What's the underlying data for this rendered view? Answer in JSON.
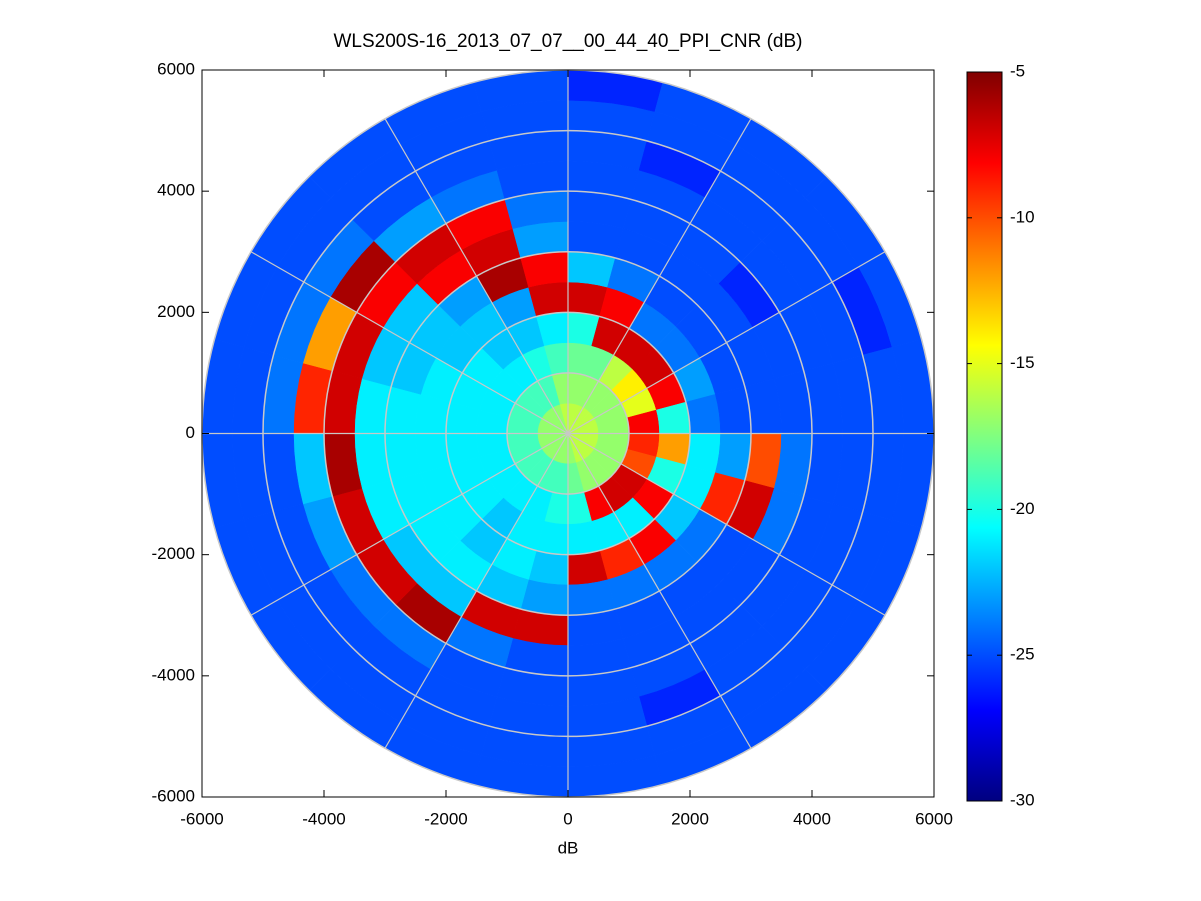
{
  "chart_data": {
    "type": "polar_heatmap",
    "title": "WLS200S-16_2013_07_07__00_44_40_PPI_CNR (dB)",
    "xlabel": "dB",
    "xlim": [
      -6000,
      6000
    ],
    "ylim": [
      -6000,
      6000
    ],
    "xticks": [
      -6000,
      -4000,
      -2000,
      0,
      2000,
      4000,
      6000
    ],
    "yticks": [
      -6000,
      -4000,
      -2000,
      0,
      2000,
      4000,
      6000
    ],
    "colormap": "jet",
    "clim": [
      -30,
      -5
    ],
    "cticks": [
      -30,
      -25,
      -20,
      -15,
      -10,
      -5
    ],
    "polar_grid": {
      "rings": [
        1000,
        2000,
        3000,
        4000,
        5000,
        6000
      ],
      "spokes": [
        0,
        30,
        60,
        90,
        120,
        150,
        180,
        210,
        240,
        270,
        300,
        330
      ]
    },
    "range_bins": [
      0,
      500,
      1000,
      1500,
      2000,
      2500,
      3000,
      3500,
      4000,
      4500,
      5000,
      5500,
      6000
    ],
    "azimuth_bins": [
      0,
      15,
      30,
      45,
      60,
      75,
      90,
      105,
      120,
      135,
      150,
      165,
      180,
      195,
      210,
      225,
      240,
      255,
      270,
      285,
      300,
      315,
      330,
      345,
      360
    ],
    "values": [
      [
        -16,
        -17,
        -18,
        -20,
        -7,
        -22,
        -25,
        -25,
        -25,
        -25,
        -25,
        -26
      ],
      [
        -16,
        -17,
        -18,
        -7,
        -8,
        -24,
        -25,
        -25,
        -25,
        -26,
        -25,
        -25
      ],
      [
        -16,
        -17,
        -16,
        -7,
        -24,
        -25,
        -25,
        -25,
        -25,
        -25,
        -25,
        -25
      ],
      [
        -16,
        -17,
        -14,
        -7,
        -24,
        -25,
        -25,
        -26,
        -25,
        -25,
        -25,
        -25
      ],
      [
        -16,
        -17,
        -15,
        -8,
        -23,
        -25,
        -25,
        -25,
        -25,
        -25,
        -26,
        -25
      ],
      [
        -16,
        -17,
        -8,
        -20,
        -24,
        -25,
        -25,
        -25,
        -25,
        -25,
        -25,
        -25
      ],
      [
        -16,
        -17,
        -9,
        -12,
        -21,
        -23,
        -10,
        -24,
        -25,
        -25,
        -25,
        -25
      ],
      [
        -16,
        -17,
        -10,
        -20,
        -21,
        -9,
        -7,
        -24,
        -25,
        -25,
        -25,
        -25
      ],
      [
        -16,
        -17,
        -7,
        -8,
        -22,
        -24,
        -25,
        -25,
        -25,
        -25,
        -25,
        -25
      ],
      [
        -16,
        -17,
        -7,
        -21,
        -8,
        -24,
        -25,
        -25,
        -25,
        -25,
        -25,
        -25
      ],
      [
        -16,
        -17,
        -8,
        -21,
        -9,
        -24,
        -25,
        -25,
        -25,
        -26,
        -25,
        -25
      ],
      [
        -17,
        -18,
        -20,
        -21,
        -7,
        -24,
        -25,
        -25,
        -25,
        -25,
        -25,
        -25
      ],
      [
        -17,
        -19,
        -20,
        -21,
        -22,
        -23,
        -7,
        -25,
        -25,
        -25,
        -25,
        -25
      ],
      [
        -17,
        -19,
        -21,
        -21,
        -21,
        -22,
        -7,
        -24,
        -25,
        -25,
        -25,
        -25
      ],
      [
        -17,
        -19,
        -21,
        -22,
        -22,
        -21,
        -22,
        -6,
        -24,
        -25,
        -25,
        -25
      ],
      [
        -17,
        -19,
        -21,
        -21,
        -21,
        -21,
        -22,
        -7,
        -24,
        -25,
        -25,
        -25
      ],
      [
        -17,
        -19,
        -21,
        -21,
        -21,
        -21,
        -21,
        -7,
        -23,
        -25,
        -25,
        -25
      ],
      [
        -17,
        -19,
        -21,
        -21,
        -21,
        -21,
        -21,
        -6,
        -22,
        -25,
        -25,
        -25
      ],
      [
        -17,
        -19,
        -21,
        -21,
        -21,
        -21,
        -21,
        -7,
        -9,
        -24,
        -25,
        -25
      ],
      [
        -17,
        -19,
        -21,
        -21,
        -21,
        -22,
        -22,
        -7,
        -12,
        -24,
        -25,
        -25
      ],
      [
        -17,
        -19,
        -21,
        -21,
        -22,
        -22,
        -22,
        -8,
        -6,
        -24,
        -25,
        -25
      ],
      [
        -17,
        -19,
        -21,
        -22,
        -22,
        -23,
        -8,
        -7,
        -23,
        -25,
        -25,
        -25
      ],
      [
        -17,
        -19,
        -20,
        -22,
        -23,
        -6,
        -7,
        -8,
        -24,
        -25,
        -25,
        -25
      ],
      [
        -16,
        -17,
        -19,
        -21,
        -7,
        -8,
        -23,
        -24,
        -25,
        -25,
        -25,
        -25
      ]
    ]
  }
}
